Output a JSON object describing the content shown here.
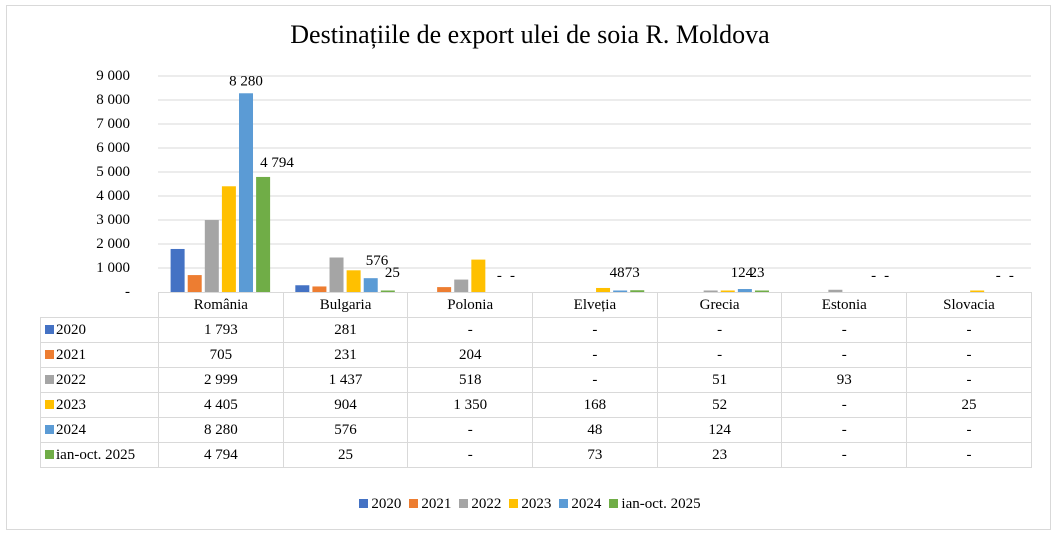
{
  "chart_data": {
    "type": "bar",
    "title": "Destinațiile de export ulei de soia R. Moldova",
    "xlabel": "",
    "ylabel": "",
    "ylim": [
      0,
      9000
    ],
    "yticks": [
      0,
      1000,
      2000,
      3000,
      4000,
      5000,
      6000,
      7000,
      8000,
      9000
    ],
    "ytick_labels": [
      "-",
      "1 000",
      "2 000",
      "3 000",
      "4 000",
      "5 000",
      "6 000",
      "7 000",
      "8 000",
      "9 000"
    ],
    "grid": true,
    "legend": "bottom",
    "categories": [
      "România",
      "Bulgaria",
      "Polonia",
      "Elveția",
      "Grecia",
      "Estonia",
      "Slovacia"
    ],
    "series": [
      {
        "name": "2020",
        "color": "#4472c4",
        "values": [
          1793,
          281,
          null,
          null,
          null,
          null,
          null
        ],
        "labels": [
          "1 793",
          "281",
          "-",
          "-",
          "-",
          "-",
          "-"
        ]
      },
      {
        "name": "2021",
        "color": "#ed7d31",
        "values": [
          705,
          231,
          204,
          null,
          null,
          null,
          null
        ],
        "labels": [
          "705",
          "231",
          "204",
          "-",
          "-",
          "-",
          "-"
        ]
      },
      {
        "name": "2022",
        "color": "#a5a5a5",
        "values": [
          2999,
          1437,
          518,
          null,
          51,
          93,
          null
        ],
        "labels": [
          "2 999",
          "1 437",
          "518",
          "-",
          "51",
          "93",
          "-"
        ]
      },
      {
        "name": "2023",
        "color": "#ffc000",
        "values": [
          4405,
          904,
          1350,
          168,
          52,
          null,
          25
        ],
        "labels": [
          "4 405",
          "904",
          "1 350",
          "168",
          "52",
          "-",
          "25"
        ]
      },
      {
        "name": "2024",
        "color": "#5b9bd5",
        "values": [
          8280,
          576,
          null,
          48,
          124,
          null,
          null
        ],
        "labels": [
          "8 280",
          "576",
          "-",
          "48",
          "124",
          "-",
          "-"
        ]
      },
      {
        "name": "ian-oct. 2025",
        "color": "#70ad47",
        "values": [
          4794,
          25,
          null,
          73,
          23,
          null,
          null
        ],
        "labels": [
          "4 794",
          "25",
          "-",
          "73",
          "23",
          "-",
          "-"
        ]
      }
    ],
    "data_labels": [
      {
        "category": "România",
        "series": "2024",
        "text": "8 280"
      },
      {
        "category": "România",
        "series": "ian-oct. 2025",
        "text": "4 794"
      },
      {
        "category": "Bulgaria",
        "series": "2024",
        "text": "576"
      },
      {
        "category": "Bulgaria",
        "series": "ian-oct. 2025",
        "text": "25"
      },
      {
        "category": "Polonia",
        "series": "2024",
        "text": "-"
      },
      {
        "category": "Polonia",
        "series": "ian-oct. 2025",
        "text": "-"
      },
      {
        "category": "Elveția",
        "series": "2024",
        "text": "48"
      },
      {
        "category": "Elveția",
        "series": "ian-oct. 2025",
        "text": "73"
      },
      {
        "category": "Grecia",
        "series": "2024",
        "text": "124"
      },
      {
        "category": "Grecia",
        "series": "ian-oct. 2025",
        "text": "23"
      },
      {
        "category": "Estonia",
        "series": "2024",
        "text": "-"
      },
      {
        "category": "Estonia",
        "series": "ian-oct. 2025",
        "text": "-"
      },
      {
        "category": "Slovacia",
        "series": "2024",
        "text": "-"
      },
      {
        "category": "Slovacia",
        "series": "ian-oct. 2025",
        "text": "-"
      }
    ]
  }
}
